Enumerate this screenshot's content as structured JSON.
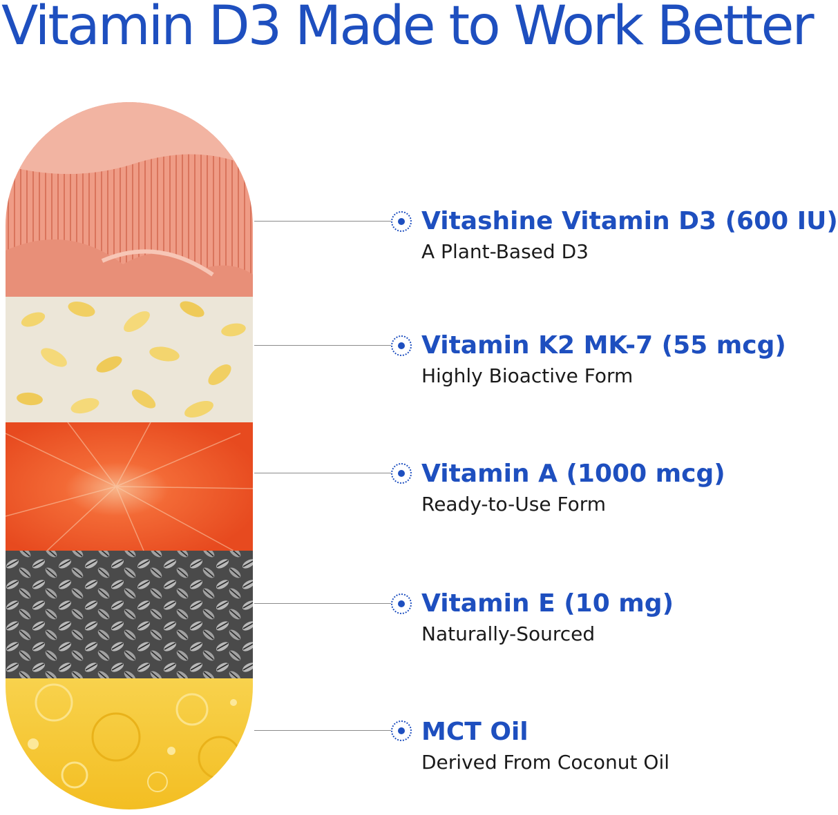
{
  "title": "Vitamin D3 Made to Work Better",
  "ingredients": [
    {
      "name": "Vitashine Vitamin D3 (600 IU)",
      "description": "A Plant-Based D3",
      "image": "pink oyster mushroom gills"
    },
    {
      "name": "Vitamin K2 MK-7 (55 mcg)",
      "description": "Highly Bioactive Form",
      "image": "tempeh with yellow soybeans"
    },
    {
      "name": "Vitamin A (1000 mcg)",
      "description": "Ready-to-Use Form",
      "image": "orange carrot cross-section"
    },
    {
      "name": "Vitamin E (10 mg)",
      "description": "Naturally-Sourced",
      "image": "striped sunflower seeds"
    },
    {
      "name": "MCT Oil",
      "description": "Derived From Coconut Oil",
      "image": "golden oil droplets"
    }
  ],
  "colors": {
    "accent": "#1e4fbf",
    "text": "#1a1a1a",
    "leader_line": "#8a8a8a",
    "mushroom": "#f0a38f",
    "tempeh": "#ece6d8",
    "carrot": "#f25a2a",
    "sunflower_seeds": "#6e6e6e",
    "oil": "#f6c935"
  }
}
